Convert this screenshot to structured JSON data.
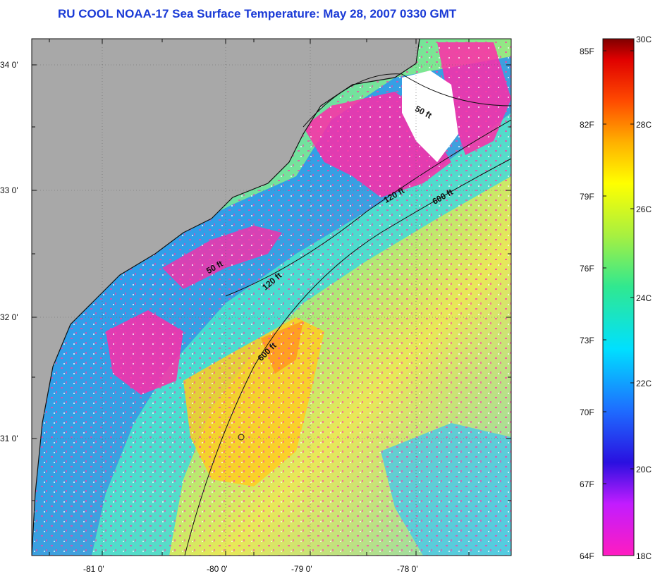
{
  "title": "RU COOL  NOAA-17  Sea Surface Temperature:  May 28, 2007 0330 GMT",
  "map": {
    "lat_labels": [
      "34 0'",
      "33 0'",
      "32 0'",
      "31 0'"
    ],
    "lon_labels": [
      "-81 0'",
      "-80 0'",
      "-79 0'",
      "-78 0'"
    ],
    "contour_labels": [
      "50 ft",
      "120 ft",
      "600 ft",
      "50 ft",
      "120 ft",
      "600 ft"
    ]
  },
  "colorbar": {
    "f_labels": [
      "85F",
      "82F",
      "79F",
      "76F",
      "73F",
      "70F",
      "67F",
      "64F"
    ],
    "c_labels": [
      "30C",
      "28C",
      "26C",
      "24C",
      "22C",
      "20C",
      "18C"
    ],
    "colors": {
      "land": "#a8a8a8",
      "cold": "#ff2aa8",
      "cool": "#1e90ff",
      "mid": "#40e0d0",
      "warm": "#ffd700",
      "hot": "#ff8c00"
    }
  }
}
